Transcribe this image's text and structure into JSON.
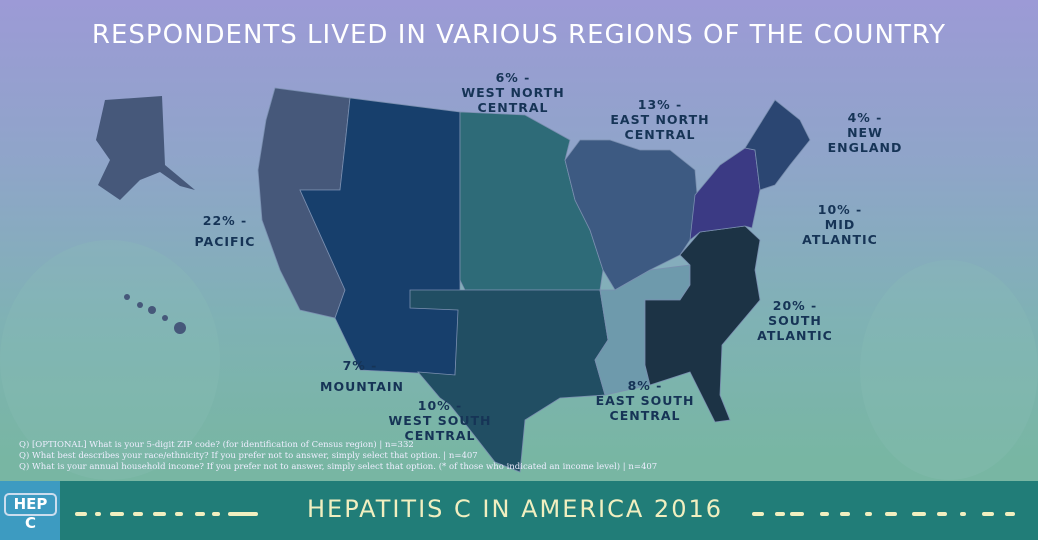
{
  "title": "RESPONDENTS LIVED IN VARIOUS REGIONS OF THE COUNTRY",
  "regions": [
    {
      "name": "Pacific",
      "pct": "22% -",
      "label": "PACIFIC",
      "color": "#46587a"
    },
    {
      "name": "Mountain",
      "pct": "7% -",
      "label": "MOUNTAIN",
      "color": "#173f6c"
    },
    {
      "name": "West North Central",
      "pct": "6% -",
      "label": "WEST NORTH CENTRAL",
      "color": "#2e6b78"
    },
    {
      "name": "West South Central",
      "pct": "10% -",
      "label": "WEST SOUTH CENTRAL",
      "color": "#214e63"
    },
    {
      "name": "East North Central",
      "pct": "13% -",
      "label": "EAST NORTH CENTRAL",
      "color": "#3d5a82"
    },
    {
      "name": "East South Central",
      "pct": "8% -",
      "label": "EAST SOUTH CENTRAL",
      "color": "#6e9aac"
    },
    {
      "name": "South Atlantic",
      "pct": "20% -",
      "label": "SOUTH ATLANTIC",
      "color": "#1c3345"
    },
    {
      "name": "Mid Atlantic",
      "pct": "10% -",
      "label": "MID ATLANTIC",
      "color": "#3b3a84"
    },
    {
      "name": "New England",
      "pct": "4% -",
      "label": "NEW ENGLAND",
      "color": "#2b4672"
    }
  ],
  "notes": [
    "Q) [OPTIONAL] What is your 5-digit ZIP code? (for identification of Census region) | n=332",
    "Q) What best describes your race/ethnicity? If you prefer not to answer, simply select that option. | n=407",
    "Q) What is your annual household income? If you prefer not to answer, simply select that option. (* of those who indicated an income level) | n=407"
  ],
  "footer": {
    "logo": "HEP C",
    "title": "HEPATITIS C IN AMERICA 2016"
  }
}
